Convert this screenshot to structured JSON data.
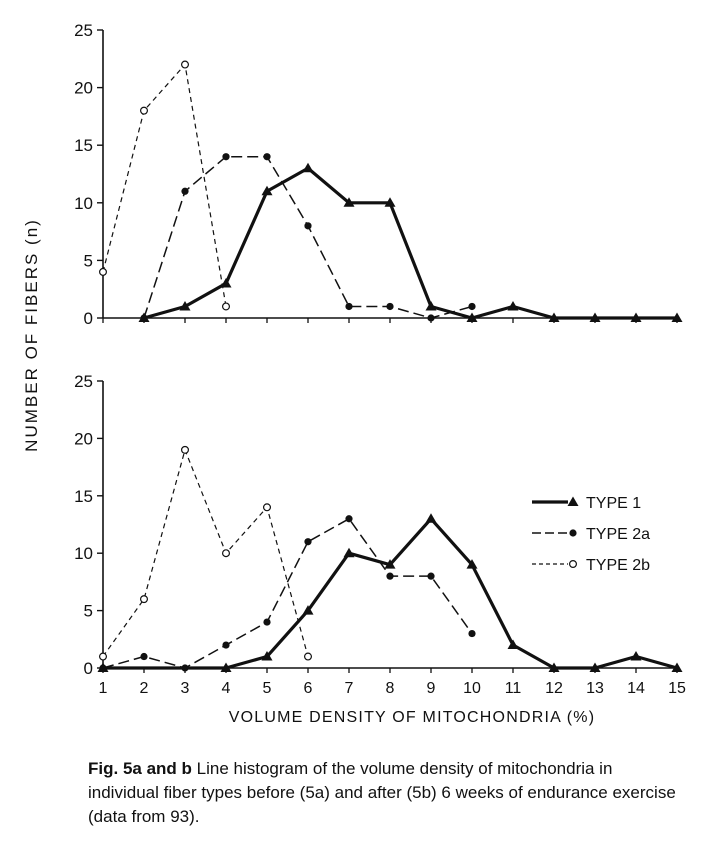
{
  "y_axis_label": "NUMBER OF FIBERS (n)",
  "x_axis_label": "VOLUME DENSITY OF MITOCHONDRIA (%)",
  "caption": {
    "bold": "Fig. 5a and b",
    "text": "Line histogram of the volume density of mitochondria in individual fiber types before (5a) and after (5b) 6 weeks of endurance exercise (data from 93)."
  },
  "legend": [
    {
      "name": "TYPE 1",
      "marker": "triangle",
      "dash": "solid",
      "color": "#111111"
    },
    {
      "name": "TYPE 2a",
      "marker": "filled-circle",
      "dash": "long-dash",
      "color": "#111111"
    },
    {
      "name": "TYPE 2b",
      "marker": "open-circle",
      "dash": "short-dash",
      "color": "#111111"
    }
  ],
  "chart_data": [
    {
      "type": "line",
      "panel": "5a",
      "ylim": [
        0,
        25
      ],
      "y_ticks": [
        "0",
        "5",
        "10",
        "15",
        "20",
        "25"
      ],
      "xlim": [
        1,
        15
      ],
      "x_tick_labels": [],
      "series": [
        {
          "name": "TYPE 1",
          "x": [
            2,
            3,
            4,
            5,
            6,
            7,
            8,
            9,
            10,
            11,
            12,
            13,
            14,
            15
          ],
          "y": [
            0,
            1,
            3,
            11,
            13,
            10,
            10,
            1,
            0,
            1,
            0,
            0,
            0,
            0
          ]
        },
        {
          "name": "TYPE 2a",
          "x": [
            2,
            3,
            4,
            5,
            6,
            7,
            8,
            9,
            10
          ],
          "y": [
            0,
            11,
            14,
            14,
            8,
            1,
            1,
            0,
            1
          ]
        },
        {
          "name": "TYPE 2b",
          "x": [
            1,
            2,
            3,
            4
          ],
          "y": [
            4,
            18,
            22,
            1
          ]
        }
      ]
    },
    {
      "type": "line",
      "panel": "5b",
      "ylim": [
        0,
        25
      ],
      "y_ticks": [
        "0",
        "5",
        "10",
        "15",
        "20",
        "25"
      ],
      "xlim": [
        1,
        15
      ],
      "x_tick_labels": [
        "1",
        "2",
        "3",
        "4",
        "5",
        "6",
        "7",
        "8",
        "9",
        "10",
        "11",
        "12",
        "13",
        "14",
        "15"
      ],
      "series": [
        {
          "name": "TYPE 1",
          "x": [
            1,
            4,
            5,
            6,
            7,
            8,
            9,
            10,
            11,
            12,
            13,
            14,
            15
          ],
          "y": [
            0,
            0,
            1,
            5,
            10,
            9,
            13,
            9,
            2,
            0,
            0,
            1,
            0
          ]
        },
        {
          "name": "TYPE 2a",
          "x": [
            1,
            2,
            3,
            4,
            5,
            6,
            7,
            8,
            9,
            10
          ],
          "y": [
            0,
            1,
            0,
            2,
            4,
            11,
            13,
            8,
            8,
            3
          ]
        },
        {
          "name": "TYPE 2b",
          "x": [
            1,
            2,
            3,
            4,
            5,
            6
          ],
          "y": [
            1,
            6,
            19,
            10,
            14,
            1
          ]
        }
      ]
    }
  ]
}
